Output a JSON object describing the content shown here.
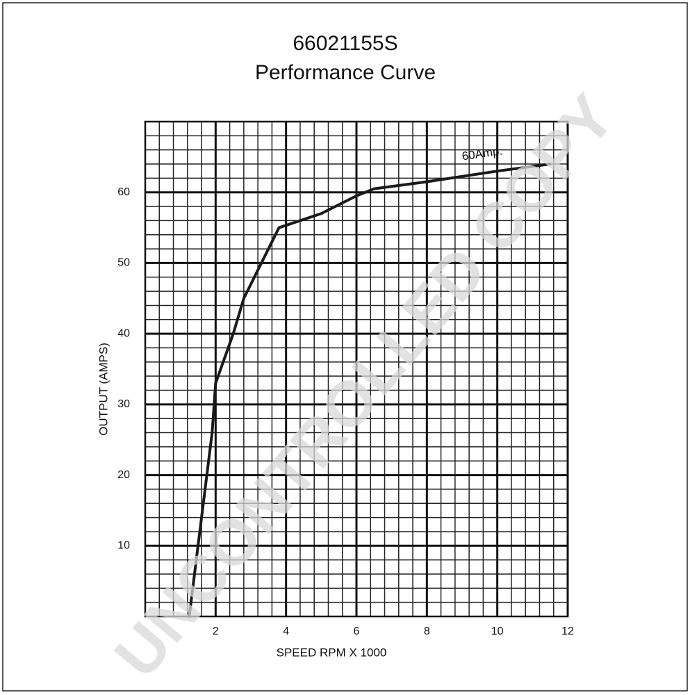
{
  "chart_data": {
    "type": "line",
    "title": "66021155S",
    "subtitle": "Performance Curve",
    "x_label": "SPEED RPM X 1000",
    "y_label": "OUTPUT (AMPS)",
    "annotation": "60Amp.",
    "watermark": "UNCONTROLLED COPY",
    "xlim": [
      0,
      12
    ],
    "ylim": [
      0,
      70
    ],
    "xticks": [
      2,
      4,
      6,
      8,
      10,
      12
    ],
    "yticks": [
      10,
      20,
      30,
      40,
      50,
      60
    ],
    "grid": true,
    "series": [
      {
        "color": "#1a1a1a",
        "x": [
          1.25,
          1.5,
          1.75,
          1.9,
          2.0,
          2.5,
          2.8,
          3.8,
          5.0,
          6.0,
          6.5,
          8.0,
          10.0,
          11.5
        ],
        "values": [
          0,
          10,
          20,
          26,
          33,
          40,
          45,
          55,
          57,
          59.5,
          60.5,
          61.5,
          63,
          64
        ]
      }
    ]
  }
}
